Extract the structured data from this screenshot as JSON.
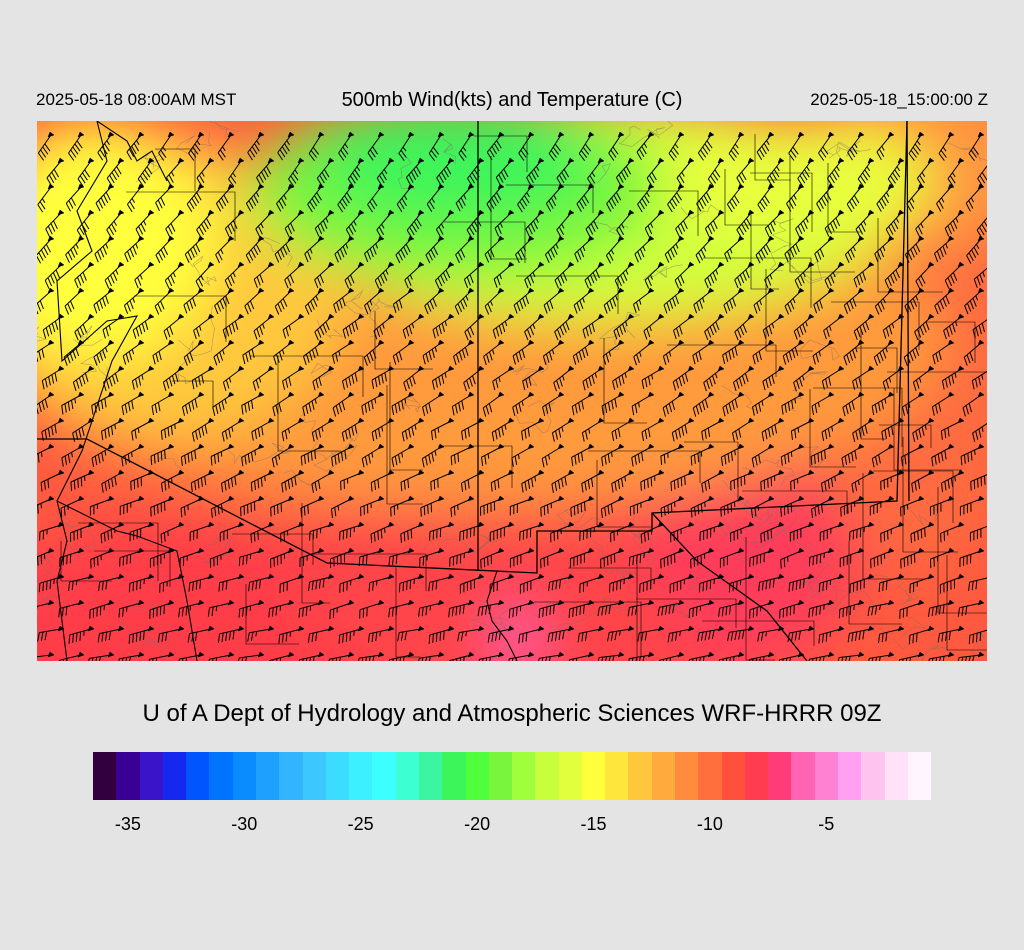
{
  "header": {
    "local_time": "2025-05-18 08:00AM MST",
    "title": "500mb Wind(kts) and Temperature (C)",
    "valid_time": "2025-05-18_15:00:00 Z"
  },
  "credit": "U of A Dept of Hydrology and Atmospheric Sciences WRF-HRRR 09Z",
  "colorbar": {
    "colors": [
      "#33003f",
      "#3a0096",
      "#3a14c8",
      "#1428f0",
      "#0055ff",
      "#0073ff",
      "#0a8cff",
      "#1ea0ff",
      "#32b4ff",
      "#3cc8ff",
      "#3cdcff",
      "#3cf0ff",
      "#3cffff",
      "#3cffd2",
      "#3cf5a0",
      "#3cf55a",
      "#50ff3c",
      "#78f53c",
      "#a0ff3c",
      "#c8ff3c",
      "#e1ff3c",
      "#ffff3c",
      "#ffe63c",
      "#ffc83c",
      "#ffaa3c",
      "#ff8c3c",
      "#ff6e3c",
      "#ff503c",
      "#ff3c50",
      "#ff3c78",
      "#ff64b4",
      "#ff82d2",
      "#ffa0f0",
      "#ffc3f0",
      "#ffe1fa",
      "#fff5ff"
    ],
    "tick_labels": [
      "-35",
      "-30",
      "-25",
      "-20",
      "-15",
      "-10",
      "-5"
    ],
    "tick_values": [
      -35,
      -30,
      -25,
      -20,
      -15,
      -10,
      -5
    ],
    "range": [
      -36,
      -1
    ]
  },
  "map": {
    "field": "500mb temperature (C) with wind barbs (kts)",
    "colors": {
      "cold_core": "#3cf55a",
      "mid": "#ffff3c",
      "warm": "#ff8c3c",
      "hot": "#ff3c50",
      "max": "#ff64b4",
      "barb": "#000000",
      "border": "#000000"
    }
  }
}
